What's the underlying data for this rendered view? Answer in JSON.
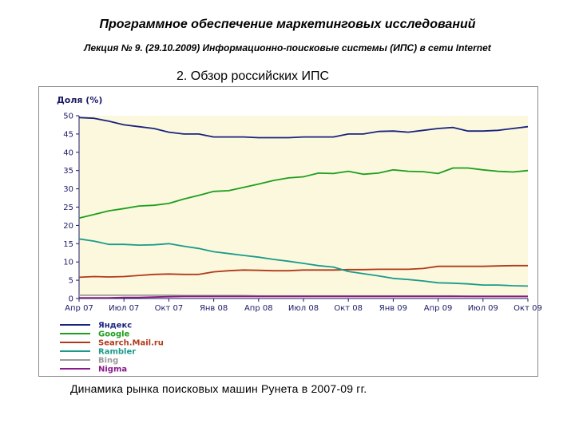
{
  "slide": {
    "title": "Программное обеспечение маркетинговых исследований",
    "subtitle": "Лекция № 9. (29.10.2009) Информационно-поисковые системы (ИПС) в сети Internet",
    "section_heading": "2. Обзор российских ИПС",
    "caption": "Динамика рынка поисковых машин Рунета в 2007-09 гг."
  },
  "chart_data": {
    "type": "line",
    "title": "Доля (%)",
    "xlabel": "",
    "ylabel": "",
    "ylim": [
      0,
      50
    ],
    "y_ticks": [
      0,
      5,
      10,
      15,
      20,
      25,
      30,
      35,
      40,
      45,
      50
    ],
    "x_tick_labels": [
      "Апр 07",
      "Июл 07",
      "Окт 07",
      "Янв 08",
      "Апр 08",
      "Июл 08",
      "Окт 08",
      "Янв 09",
      "Апр 09",
      "Июл 09",
      "Окт 09"
    ],
    "grid": false,
    "legend_position": "bottom-left",
    "x_months": [
      "2007-04",
      "2007-05",
      "2007-06",
      "2007-07",
      "2007-08",
      "2007-09",
      "2007-10",
      "2007-11",
      "2007-12",
      "2008-01",
      "2008-02",
      "2008-03",
      "2008-04",
      "2008-05",
      "2008-06",
      "2008-07",
      "2008-08",
      "2008-09",
      "2008-10",
      "2008-11",
      "2008-12",
      "2009-01",
      "2009-02",
      "2009-03",
      "2009-04",
      "2009-05",
      "2009-06",
      "2009-07",
      "2009-08",
      "2009-09",
      "2009-10"
    ],
    "series": [
      {
        "name": "Яндекс",
        "color": "#1a237e",
        "values": [
          49.5,
          49.3,
          48.5,
          47.5,
          47,
          46.5,
          45.5,
          45,
          45,
          44.2,
          44.2,
          44.2,
          44,
          44,
          44,
          44.2,
          44.2,
          44.2,
          45,
          45,
          45.7,
          45.8,
          45.5,
          46,
          46.5,
          46.8,
          45.8,
          45.8,
          46,
          46.5,
          47
        ]
      },
      {
        "name": "Google",
        "color": "#1e9e1e",
        "values": [
          22,
          23,
          24,
          24.6,
          25.3,
          25.5,
          26,
          27.2,
          28.2,
          29.3,
          29.5,
          30.4,
          31.3,
          32.3,
          33,
          33.3,
          34.3,
          34.2,
          34.8,
          34,
          34.3,
          35.2,
          34.8,
          34.7,
          34.2,
          35.7,
          35.7,
          35.2,
          34.8,
          34.6,
          35
        ]
      },
      {
        "name": "Search.Mail.ru",
        "color": "#b03a1a",
        "values": [
          5.8,
          6,
          5.9,
          6,
          6.3,
          6.6,
          6.7,
          6.6,
          6.6,
          7.3,
          7.6,
          7.8,
          7.7,
          7.6,
          7.6,
          7.8,
          7.8,
          7.8,
          7.9,
          7.9,
          8,
          8,
          8,
          8.2,
          8.8,
          8.8,
          8.8,
          8.8,
          8.9,
          9,
          9
        ]
      },
      {
        "name": "Rambler",
        "color": "#1b9a8a",
        "values": [
          16.3,
          15.7,
          14.8,
          14.8,
          14.6,
          14.7,
          15,
          14.3,
          13.7,
          12.8,
          12.3,
          11.8,
          11.3,
          10.7,
          10.2,
          9.6,
          9,
          8.6,
          7.4,
          6.8,
          6.2,
          5.5,
          5.2,
          4.8,
          4.3,
          4.2,
          4,
          3.7,
          3.7,
          3.5,
          3.4
        ]
      },
      {
        "name": "Bing",
        "color": "#9a9a9a",
        "values": [
          0.9,
          0.9,
          0.9,
          0.9,
          0.9,
          0.9,
          0.9,
          0.8,
          0.8,
          0.8,
          0.8,
          0.8,
          0.7,
          0.7,
          0.7,
          0.7,
          0.7,
          0.7,
          0.7,
          0.7,
          0.7,
          0.7,
          0.7,
          0.7,
          0.7,
          0.7,
          0.6,
          0.6,
          0.6,
          0.6,
          0.6
        ]
      },
      {
        "name": "Nigma",
        "color": "#8a1a8a",
        "values": [
          0.2,
          0.2,
          0.2,
          0.3,
          0.3,
          0.4,
          0.5,
          0.6,
          0.6,
          0.6,
          0.6,
          0.6,
          0.6,
          0.6,
          0.6,
          0.6,
          0.6,
          0.6,
          0.6,
          0.6,
          0.6,
          0.6,
          0.6,
          0.6,
          0.6,
          0.6,
          0.6,
          0.6,
          0.6,
          0.6,
          0.6
        ]
      }
    ]
  }
}
